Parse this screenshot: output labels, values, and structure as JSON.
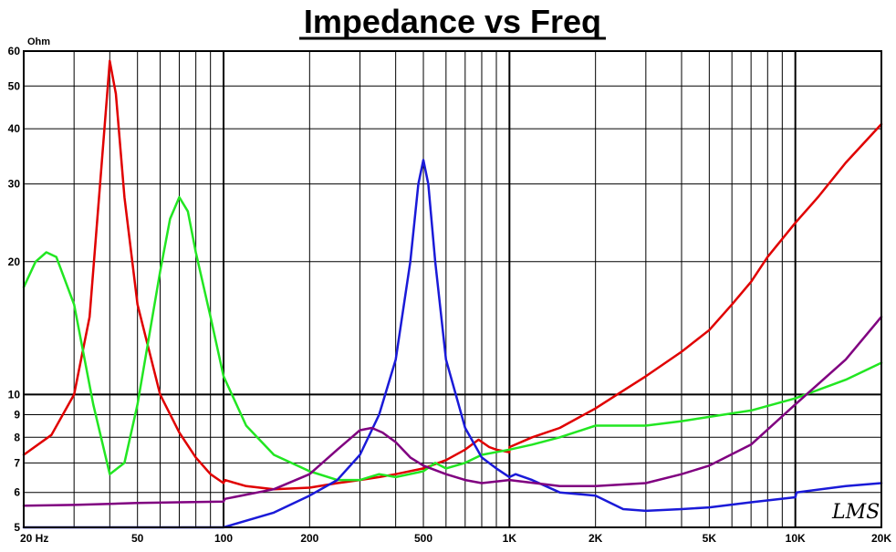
{
  "chart_data": {
    "type": "line",
    "title": "Impedance vs Freq",
    "ylabel": "Ohm",
    "xlabel": "",
    "x_scale": "log",
    "y_scale": "log",
    "xlim": [
      20,
      20000
    ],
    "ylim": [
      5,
      60
    ],
    "grid": true,
    "x_ticks": [
      {
        "value": 20,
        "label": "20 Hz"
      },
      {
        "value": 50,
        "label": "50"
      },
      {
        "value": 100,
        "label": "100"
      },
      {
        "value": 200,
        "label": "200"
      },
      {
        "value": 500,
        "label": "500"
      },
      {
        "value": 1000,
        "label": "1K"
      },
      {
        "value": 2000,
        "label": "2K"
      },
      {
        "value": 5000,
        "label": "5K"
      },
      {
        "value": 10000,
        "label": "10K"
      },
      {
        "value": 20000,
        "label": "20K"
      }
    ],
    "y_ticks": [
      {
        "value": 5,
        "label": "5"
      },
      {
        "value": 6,
        "label": "6"
      },
      {
        "value": 7,
        "label": "7"
      },
      {
        "value": 8,
        "label": "8"
      },
      {
        "value": 9,
        "label": "9"
      },
      {
        "value": 10,
        "label": "10"
      },
      {
        "value": 20,
        "label": "20"
      },
      {
        "value": 30,
        "label": "30"
      },
      {
        "value": 40,
        "label": "40"
      },
      {
        "value": 50,
        "label": "50"
      },
      {
        "value": 60,
        "label": "60"
      }
    ],
    "watermark": "LMS",
    "series": [
      {
        "color": "#e00000",
        "x": [
          20,
          25,
          30,
          34,
          37,
          40,
          42,
          45,
          50,
          60,
          70,
          80,
          90,
          100,
          101,
          120,
          150,
          200,
          250,
          300,
          350,
          400,
          500,
          600,
          700,
          780,
          850,
          900,
          1000,
          1001,
          1200,
          1500,
          2000,
          2500,
          3000,
          4000,
          5000,
          6000,
          7000,
          8000,
          10000,
          12000,
          15000,
          20000
        ],
        "values": [
          7.3,
          8.1,
          10.0,
          15.0,
          30.0,
          57.0,
          48.0,
          28.0,
          16.0,
          10.0,
          8.2,
          7.2,
          6.6,
          6.3,
          6.4,
          6.2,
          6.1,
          6.15,
          6.3,
          6.4,
          6.5,
          6.6,
          6.8,
          7.1,
          7.5,
          7.9,
          7.6,
          7.5,
          7.4,
          7.6,
          8.0,
          8.4,
          9.3,
          10.2,
          11.0,
          12.5,
          14.0,
          16.0,
          18.0,
          20.5,
          24.5,
          28.0,
          33.5,
          41.0
        ]
      },
      {
        "color": "#22e622",
        "x": [
          20,
          22,
          24,
          26,
          30,
          35,
          40,
          45,
          50,
          60,
          65,
          70,
          75,
          80,
          90,
          100,
          120,
          150,
          200,
          250,
          300,
          350,
          400,
          500,
          550,
          600,
          700,
          800,
          1000,
          1200,
          1500,
          2000,
          2500,
          3000,
          4000,
          5000,
          7000,
          10000,
          15000,
          20000
        ],
        "values": [
          17.5,
          20.0,
          21.0,
          20.5,
          16.0,
          9.5,
          6.6,
          7.0,
          9.5,
          19.0,
          25.0,
          28.0,
          26.0,
          21.0,
          15.0,
          11.0,
          8.5,
          7.3,
          6.7,
          6.4,
          6.4,
          6.6,
          6.5,
          6.7,
          7.0,
          6.8,
          7.0,
          7.3,
          7.5,
          7.7,
          8.0,
          8.5,
          8.5,
          8.5,
          8.7,
          8.9,
          9.2,
          9.8,
          10.8,
          11.8
        ]
      },
      {
        "color": "#1a1ad8",
        "x": [
          20,
          40,
          60,
          80,
          100,
          150,
          200,
          250,
          300,
          350,
          400,
          450,
          480,
          500,
          520,
          550,
          600,
          700,
          800,
          900,
          1000,
          1050,
          1200,
          1500,
          2000,
          2500,
          3000,
          4000,
          5000,
          7000,
          10000,
          10100,
          15000,
          20000
        ],
        "values": [
          4.95,
          4.95,
          4.95,
          4.95,
          5.0,
          5.4,
          5.9,
          6.4,
          7.3,
          9.0,
          12.0,
          20.0,
          30.0,
          34.0,
          30.0,
          20.0,
          12.0,
          8.4,
          7.2,
          6.8,
          6.5,
          6.6,
          6.4,
          6.0,
          5.9,
          5.5,
          5.45,
          5.5,
          5.55,
          5.7,
          5.85,
          6.0,
          6.2,
          6.3
        ]
      },
      {
        "color": "#800080",
        "x": [
          20,
          30,
          40,
          50,
          70,
          100,
          101,
          150,
          200,
          250,
          300,
          330,
          360,
          400,
          450,
          500,
          600,
          700,
          800,
          1000,
          1500,
          2000,
          3000,
          4000,
          5000,
          7000,
          10000,
          15000,
          20000
        ],
        "values": [
          5.6,
          5.62,
          5.65,
          5.68,
          5.7,
          5.72,
          5.8,
          6.1,
          6.6,
          7.5,
          8.3,
          8.4,
          8.2,
          7.8,
          7.2,
          6.9,
          6.6,
          6.4,
          6.3,
          6.4,
          6.2,
          6.2,
          6.3,
          6.6,
          6.9,
          7.7,
          9.5,
          12.0,
          15.0
        ]
      }
    ]
  }
}
